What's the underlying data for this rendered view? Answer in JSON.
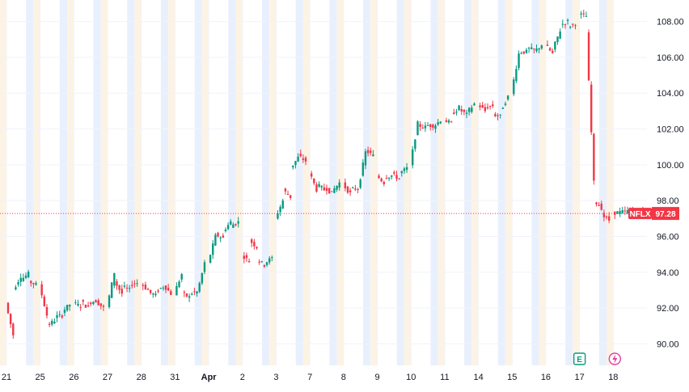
{
  "chart_data": {
    "type": "candlestick",
    "symbol": "NFLX",
    "last_price": 97.28,
    "ylim": [
      88.8,
      109.2
    ],
    "y_ticks": [
      90,
      92,
      94,
      96,
      98,
      100,
      102,
      104,
      106,
      108
    ],
    "y_tick_labels": [
      "90.00",
      "92.00",
      "94.00",
      "96.00",
      "98.00",
      "100.00",
      "102.00",
      "104.00",
      "106.00",
      "108.00"
    ],
    "x_tick_labels": [
      "21",
      "25",
      "26",
      "27",
      "28",
      "31",
      "Apr",
      "2",
      "3",
      "7",
      "8",
      "9",
      "10",
      "11",
      "14",
      "15",
      "16",
      "17",
      "18"
    ],
    "sessions": [
      {
        "label": "21",
        "points": [
          [
            92.3,
            90.5
          ],
          [
            93.0,
            93.8
          ],
          [
            93.6,
            93.9
          ],
          [
            93.5,
            93.3
          ]
        ]
      },
      {
        "label": "25",
        "points": [
          [
            93.3,
            91.6
          ],
          [
            91.0,
            91.3
          ],
          [
            91.5,
            91.6
          ],
          [
            91.8,
            92.2
          ]
        ]
      },
      {
        "label": "26",
        "points": [
          [
            92.3,
            92.1
          ],
          [
            92.4,
            92.0
          ],
          [
            92.3,
            92.4
          ],
          [
            92.4,
            92.0
          ]
        ]
      },
      {
        "label": "27",
        "points": [
          [
            92.0,
            94.0
          ],
          [
            93.5,
            92.8
          ],
          [
            93.2,
            93.0
          ],
          [
            93.3,
            93.4
          ]
        ]
      },
      {
        "label": "28",
        "points": [
          [
            93.4,
            93.0
          ],
          [
            92.9,
            92.7
          ],
          [
            92.9,
            93.2
          ],
          [
            93.3,
            92.8
          ]
        ]
      },
      {
        "label": "31",
        "points": [
          [
            92.8,
            93.9
          ],
          [
            92.8,
            92.6
          ],
          [
            92.8,
            92.9
          ],
          [
            92.8,
            94.5
          ]
        ]
      },
      {
        "label": "Apr",
        "points": [
          [
            94.5,
            96.0
          ],
          [
            96.1,
            95.9
          ],
          [
            96.3,
            96.8
          ],
          [
            96.6,
            96.8
          ]
        ]
      },
      {
        "label": "2",
        "points": [
          [
            95.0,
            94.6
          ],
          [
            95.8,
            95.4
          ],
          [
            94.7,
            94.4
          ],
          [
            94.5,
            94.8
          ]
        ]
      },
      {
        "label": "3",
        "points": [
          [
            97.0,
            98.0
          ],
          [
            98.6,
            98.2
          ],
          [
            99.8,
            100.4
          ],
          [
            100.5,
            100.2
          ]
        ]
      },
      {
        "label": "7",
        "points": [
          [
            99.6,
            98.6
          ],
          [
            98.9,
            98.6
          ],
          [
            98.8,
            98.4
          ],
          [
            98.5,
            99.0
          ]
        ]
      },
      {
        "label": "8",
        "points": [
          [
            98.9,
            98.4
          ],
          [
            98.6,
            98.7
          ],
          [
            98.6,
            100.7
          ],
          [
            100.8,
            100.5
          ]
        ]
      },
      {
        "label": "9",
        "points": [
          [
            99.4,
            99.0
          ],
          [
            99.3,
            99.4
          ],
          [
            99.5,
            99.2
          ],
          [
            99.5,
            99.8
          ]
        ]
      },
      {
        "label": "10",
        "points": [
          [
            100.0,
            102.3
          ],
          [
            102.2,
            102.1
          ],
          [
            102.2,
            102.2
          ],
          [
            102.1,
            102.5
          ]
        ]
      },
      {
        "label": "11",
        "points": [
          [
            102.5,
            102.3
          ],
          [
            102.8,
            103.2
          ],
          [
            103.1,
            102.8
          ],
          [
            102.9,
            103.4
          ]
        ]
      },
      {
        "label": "14",
        "points": [
          [
            103.4,
            103.0
          ],
          [
            103.2,
            103.3
          ],
          [
            102.8,
            102.7
          ],
          [
            103.0,
            103.8
          ]
        ]
      },
      {
        "label": "15",
        "points": [
          [
            104.0,
            106.2
          ],
          [
            106.3,
            106.3
          ],
          [
            106.5,
            106.4
          ],
          [
            106.3,
            106.7
          ]
        ]
      },
      {
        "label": "16",
        "points": [
          [
            106.7,
            106.2
          ],
          [
            106.4,
            107.5
          ],
          [
            107.8,
            108.0
          ],
          [
            107.7,
            107.9
          ]
        ]
      },
      {
        "label": "17",
        "points": [
          [
            108.4,
            108.3
          ],
          [
            107.4,
            99.0
          ],
          [
            98.0,
            97.6
          ],
          [
            97.2,
            96.9
          ]
        ]
      },
      {
        "label": "18",
        "points": [
          [
            97.3,
            97.4
          ],
          [
            97.5,
            97.3
          ]
        ]
      }
    ],
    "grid": true,
    "session_shading": true,
    "legend": "none"
  },
  "markers": {
    "earnings_label": "E",
    "dividend_icon": "lightning-icon"
  },
  "colors": {
    "up": "#089981",
    "down": "#f23645",
    "grid": "#f0f3fa",
    "pre_market_band": "#fdf3e4",
    "post_market_band": "#e9f0fd",
    "price_line": "#f23645"
  }
}
